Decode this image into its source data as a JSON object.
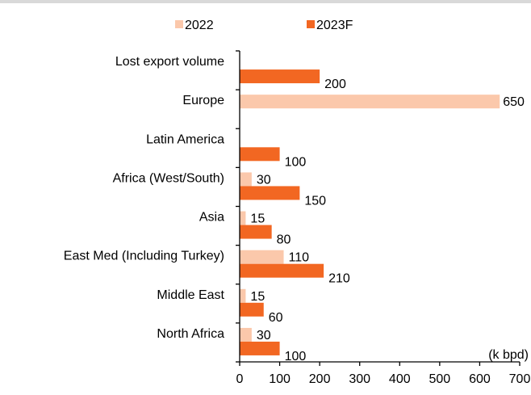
{
  "chart_data": {
    "type": "bar",
    "orientation": "horizontal",
    "categories": [
      "Lost export volume",
      "Europe",
      "Latin America",
      "Africa (West/South)",
      "Asia",
      "East Med (Including Turkey)",
      "Middle East",
      "North Africa"
    ],
    "series": [
      {
        "name": "2022",
        "color": "#fbc8ab",
        "values": [
          null,
          650,
          null,
          30,
          15,
          110,
          15,
          30
        ]
      },
      {
        "name": "2023F",
        "color": "#f26722",
        "values": [
          200,
          null,
          100,
          150,
          80,
          210,
          60,
          100
        ]
      }
    ],
    "data_labels": {
      "2022": [
        "",
        "650",
        "",
        "30",
        "15",
        "110",
        "15",
        "30"
      ],
      "2023F": [
        "200",
        "",
        "100",
        "150",
        "80",
        "210",
        "60",
        "100"
      ]
    },
    "xlim": [
      0,
      700
    ],
    "xticks": [
      0,
      100,
      200,
      300,
      400,
      500,
      600,
      700
    ],
    "unit_label": "(k bpd)",
    "legend": "top",
    "grid": false
  }
}
